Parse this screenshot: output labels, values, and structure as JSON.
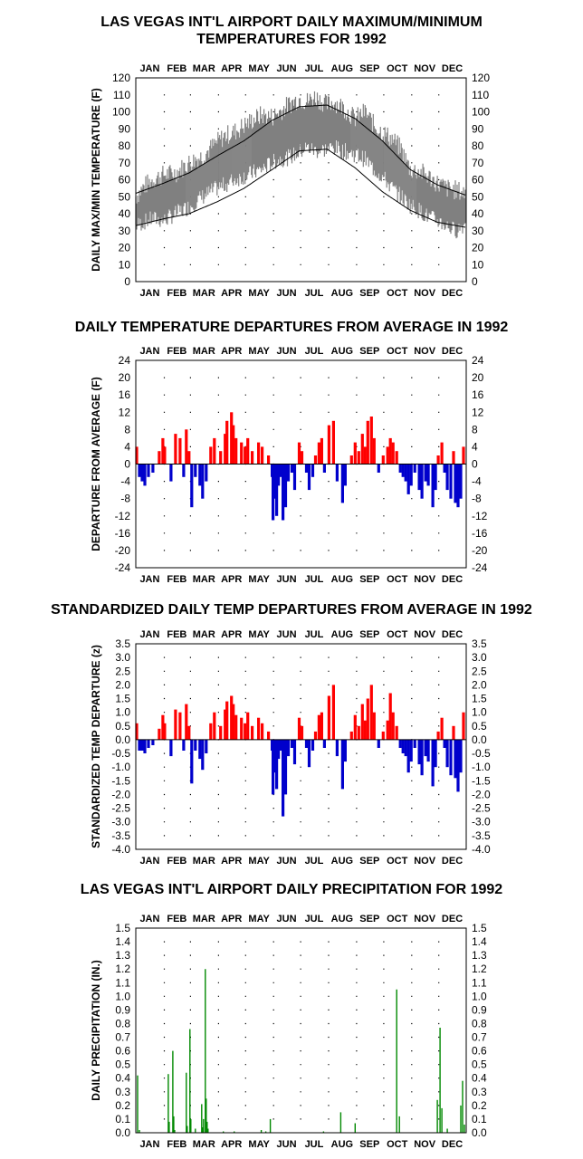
{
  "colors": {
    "positive": "#ff0000",
    "negative": "#0000cc",
    "band": "#808080",
    "precip": "#008800",
    "normals": "#000000"
  },
  "chart_data": [
    {
      "type": "area",
      "title": "LAS VEGAS INT'L AIRPORT DAILY MAXIMUM/MINIMUM\nTEMPERATURES FOR 1992",
      "title_lines": [
        "LAS VEGAS INT'L AIRPORT DAILY MAXIMUM/MINIMUM",
        "TEMPERATURES FOR 1992"
      ],
      "ylabel": "DAILY MAX/MIN TEMPERATURE (F)",
      "months": [
        "JAN",
        "FEB",
        "MAR",
        "APR",
        "MAY",
        "JUN",
        "JUL",
        "AUG",
        "SEP",
        "OCT",
        "NOV",
        "DEC"
      ],
      "ylim": [
        0,
        120
      ],
      "yticks": [
        0,
        10,
        20,
        30,
        40,
        50,
        60,
        70,
        80,
        90,
        100,
        110,
        120
      ],
      "grid": "dotted",
      "x_unit": "day_of_year",
      "max_daily_x": [
        1,
        10,
        20,
        32,
        45,
        60,
        75,
        91,
        100,
        110,
        121,
        130,
        140,
        152,
        160,
        170,
        182,
        190,
        200,
        213,
        220,
        230,
        244,
        255,
        265,
        274,
        285,
        295,
        305,
        315,
        325,
        335,
        345,
        355,
        366
      ],
      "max_daily_y": [
        50,
        56,
        60,
        63,
        64,
        70,
        74,
        82,
        86,
        88,
        92,
        95,
        98,
        97,
        100,
        104,
        108,
        106,
        109,
        104,
        106,
        103,
        96,
        100,
        92,
        88,
        84,
        78,
        66,
        65,
        62,
        58,
        55,
        54,
        52
      ],
      "min_daily_x": [
        1,
        10,
        20,
        32,
        45,
        60,
        75,
        91,
        100,
        110,
        121,
        130,
        140,
        152,
        160,
        170,
        182,
        190,
        200,
        213,
        220,
        230,
        244,
        255,
        265,
        274,
        285,
        295,
        305,
        315,
        325,
        335,
        345,
        355,
        366
      ],
      "min_daily_y": [
        33,
        35,
        37,
        36,
        40,
        44,
        50,
        55,
        57,
        60,
        62,
        64,
        66,
        70,
        72,
        73,
        76,
        79,
        77,
        78,
        79,
        77,
        75,
        72,
        66,
        62,
        55,
        50,
        45,
        42,
        38,
        36,
        33,
        30,
        34
      ],
      "normal_max_x": [
        1,
        32,
        60,
        91,
        121,
        152,
        182,
        213,
        244,
        274,
        305,
        335,
        366
      ],
      "normal_max_y": [
        52,
        58,
        64,
        74,
        83,
        95,
        103,
        104,
        96,
        83,
        66,
        57,
        51
      ],
      "normal_min_x": [
        1,
        32,
        60,
        91,
        121,
        152,
        182,
        213,
        244,
        274,
        305,
        335,
        366
      ],
      "normal_min_y": [
        33,
        37,
        40,
        47,
        55,
        66,
        77,
        78,
        67,
        53,
        42,
        35,
        32
      ]
    },
    {
      "type": "bar",
      "title": "DAILY TEMPERATURE DEPARTURES FROM AVERAGE IN 1992",
      "title_lines": [
        "DAILY TEMPERATURE DEPARTURES FROM AVERAGE IN 1992"
      ],
      "ylabel": "DEPARTURE FROM AVERAGE (F)",
      "months": [
        "JAN",
        "FEB",
        "MAR",
        "APR",
        "MAY",
        "JUN",
        "JUL",
        "AUG",
        "SEP",
        "OCT",
        "NOV",
        "DEC"
      ],
      "ylim": [
        -24,
        24
      ],
      "yticks": [
        -24,
        -20,
        -16,
        -12,
        -8,
        -4,
        0,
        4,
        8,
        12,
        16,
        20,
        24
      ],
      "grid": "dotted",
      "x_unit": "day_of_year",
      "x": [
        2,
        5,
        8,
        11,
        15,
        20,
        27,
        31,
        33,
        40,
        45,
        50,
        54,
        57,
        60,
        63,
        67,
        72,
        75,
        79,
        84,
        88,
        95,
        100,
        102,
        107,
        109,
        112,
        118,
        122,
        125,
        130,
        137,
        141,
        145,
        148,
        152,
        153,
        155,
        157,
        159,
        162,
        164,
        167,
        170,
        174,
        177,
        182,
        185,
        190,
        193,
        197,
        200,
        204,
        207,
        210,
        215,
        220,
        224,
        230,
        233,
        240,
        244,
        248,
        252,
        255,
        258,
        262,
        265,
        270,
        275,
        280,
        283,
        286,
        290,
        294,
        297,
        300,
        303,
        306,
        310,
        315,
        318,
        322,
        325,
        330,
        333,
        336,
        340,
        343,
        346,
        350,
        353,
        355,
        358,
        361,
        364
      ],
      "y": [
        4,
        -3,
        -4,
        -5,
        -3,
        -2,
        3,
        6,
        4,
        -4,
        7,
        6,
        -3,
        8,
        3,
        -10,
        -3,
        -5,
        -8,
        -4,
        4,
        6,
        3,
        7,
        10,
        12,
        9,
        6,
        5,
        4,
        6,
        3,
        5,
        4,
        0,
        2,
        -3,
        -13,
        -8,
        -12,
        -5,
        -3,
        -13,
        -10,
        -4,
        -2,
        -6,
        5,
        3,
        -2,
        -6,
        -3,
        2,
        5,
        6,
        -2,
        9,
        10,
        -4,
        -9,
        -5,
        2,
        5,
        3,
        7,
        4,
        10,
        11,
        6,
        -2,
        2,
        4,
        6,
        5,
        3,
        -2,
        -3,
        -4,
        -7,
        -5,
        -2,
        -6,
        -8,
        -4,
        -5,
        -10,
        -6,
        2,
        5,
        -2,
        -6,
        -8,
        3,
        -9,
        -10,
        -8,
        4
      ]
    },
    {
      "type": "bar",
      "title": "STANDARDIZED DAILY TEMP DEPARTURES FROM AVERAGE IN 1992",
      "title_lines": [
        "STANDARDIZED DAILY TEMP DEPARTURES FROM AVERAGE IN 1992"
      ],
      "ylabel": "STANDARDIZED TEMP DEPARTURE (z)",
      "months": [
        "JAN",
        "FEB",
        "MAR",
        "APR",
        "MAY",
        "JUN",
        "JUL",
        "AUG",
        "SEP",
        "OCT",
        "NOV",
        "DEC"
      ],
      "ylim": [
        -4.0,
        3.5
      ],
      "yticks": [
        -4.0,
        -3.5,
        -3.0,
        -2.5,
        -2.0,
        -1.5,
        -1.0,
        -0.5,
        0.0,
        0.5,
        1.0,
        1.5,
        2.0,
        2.5,
        3.0,
        3.5
      ],
      "ytick_labels": [
        "-4.0",
        "-3.5",
        "-3.0",
        "-2.5",
        "-2.0",
        "-1.5",
        "-1.0",
        "-0.5",
        "0.0",
        "0.5",
        "1.0",
        "1.5",
        "2.0",
        "2.5",
        "3.0",
        "3.5"
      ],
      "grid": "dotted",
      "x_unit": "day_of_year",
      "x": [
        2,
        5,
        8,
        11,
        15,
        20,
        27,
        31,
        33,
        40,
        45,
        50,
        54,
        57,
        60,
        63,
        67,
        72,
        75,
        79,
        84,
        88,
        95,
        100,
        102,
        107,
        109,
        112,
        118,
        122,
        125,
        130,
        137,
        141,
        145,
        148,
        152,
        153,
        155,
        157,
        159,
        162,
        164,
        167,
        170,
        174,
        177,
        182,
        185,
        190,
        193,
        197,
        200,
        204,
        207,
        210,
        215,
        220,
        224,
        230,
        233,
        240,
        244,
        248,
        252,
        255,
        258,
        262,
        265,
        270,
        275,
        280,
        283,
        286,
        290,
        294,
        297,
        300,
        303,
        306,
        310,
        315,
        318,
        322,
        325,
        330,
        333,
        336,
        340,
        343,
        346,
        350,
        353,
        355,
        358,
        361,
        364
      ],
      "y": [
        0.6,
        -0.4,
        -0.4,
        -0.5,
        -0.3,
        -0.2,
        0.4,
        0.9,
        0.6,
        -0.6,
        1.1,
        1.0,
        -0.4,
        1.3,
        0.5,
        -1.6,
        -0.4,
        -0.7,
        -1.1,
        -0.5,
        0.6,
        1.0,
        0.5,
        1.1,
        1.4,
        1.6,
        1.3,
        0.9,
        0.8,
        0.6,
        1.0,
        0.5,
        0.8,
        0.6,
        0.0,
        0.3,
        -0.4,
        -2.0,
        -1.2,
        -1.8,
        -0.7,
        -0.4,
        -2.8,
        -2.0,
        -0.6,
        -0.3,
        -0.9,
        0.8,
        0.5,
        -0.3,
        -1.0,
        -0.4,
        0.3,
        0.9,
        1.0,
        -0.3,
        1.6,
        2.0,
        -0.6,
        -1.8,
        -0.8,
        0.3,
        0.9,
        0.5,
        1.3,
        0.7,
        1.5,
        2.0,
        1.0,
        -0.3,
        0.3,
        0.7,
        1.7,
        1.0,
        0.5,
        -0.3,
        -0.5,
        -0.6,
        -1.2,
        -0.8,
        -0.3,
        -0.9,
        -1.3,
        -0.6,
        -0.8,
        -1.7,
        -1.0,
        0.3,
        0.8,
        -0.3,
        -1.0,
        -1.3,
        0.5,
        -1.4,
        -1.9,
        -1.2,
        1.0
      ]
    },
    {
      "type": "bar",
      "title": "LAS VEGAS INT'L AIRPORT DAILY PRECIPITATION FOR 1992",
      "title_lines": [
        "LAS VEGAS INT'L AIRPORT DAILY PRECIPITATION FOR 1992"
      ],
      "ylabel": "DAILY PRECIPITATION (IN.)",
      "months": [
        "JAN",
        "FEB",
        "MAR",
        "APR",
        "MAY",
        "JUN",
        "JUL",
        "AUG",
        "SEP",
        "OCT",
        "NOV",
        "DEC"
      ],
      "ylim": [
        0.0,
        1.5
      ],
      "yticks": [
        0.0,
        0.1,
        0.2,
        0.3,
        0.4,
        0.5,
        0.6,
        0.7,
        0.8,
        0.9,
        1.0,
        1.1,
        1.2,
        1.3,
        1.4,
        1.5
      ],
      "ytick_labels": [
        "0.0",
        "0.1",
        "0.2",
        "0.3",
        "0.4",
        "0.5",
        "0.6",
        "0.7",
        "0.8",
        "0.9",
        "1.0",
        "1.1",
        "1.2",
        "1.3",
        "1.4",
        "1.5"
      ],
      "grid": "dotted",
      "x_unit": "day_of_year",
      "x": [
        3,
        5,
        37,
        38,
        42,
        43,
        44,
        57,
        58,
        61,
        62,
        67,
        74,
        75,
        76,
        78,
        79,
        80,
        81,
        98,
        110,
        140,
        145,
        150,
        209,
        228,
        244,
        290,
        293,
        335,
        338,
        340,
        346,
        361,
        363,
        365
      ],
      "y": [
        0.42,
        0.02,
        0.43,
        0.08,
        0.6,
        0.12,
        0.02,
        0.44,
        0.05,
        0.76,
        0.1,
        0.03,
        0.21,
        0.04,
        0.1,
        1.2,
        0.25,
        0.08,
        0.03,
        0.01,
        0.01,
        0.02,
        0.01,
        0.1,
        0.01,
        0.15,
        0.07,
        1.05,
        0.12,
        0.24,
        0.77,
        0.18,
        0.03,
        0.2,
        0.38,
        0.06
      ]
    }
  ]
}
